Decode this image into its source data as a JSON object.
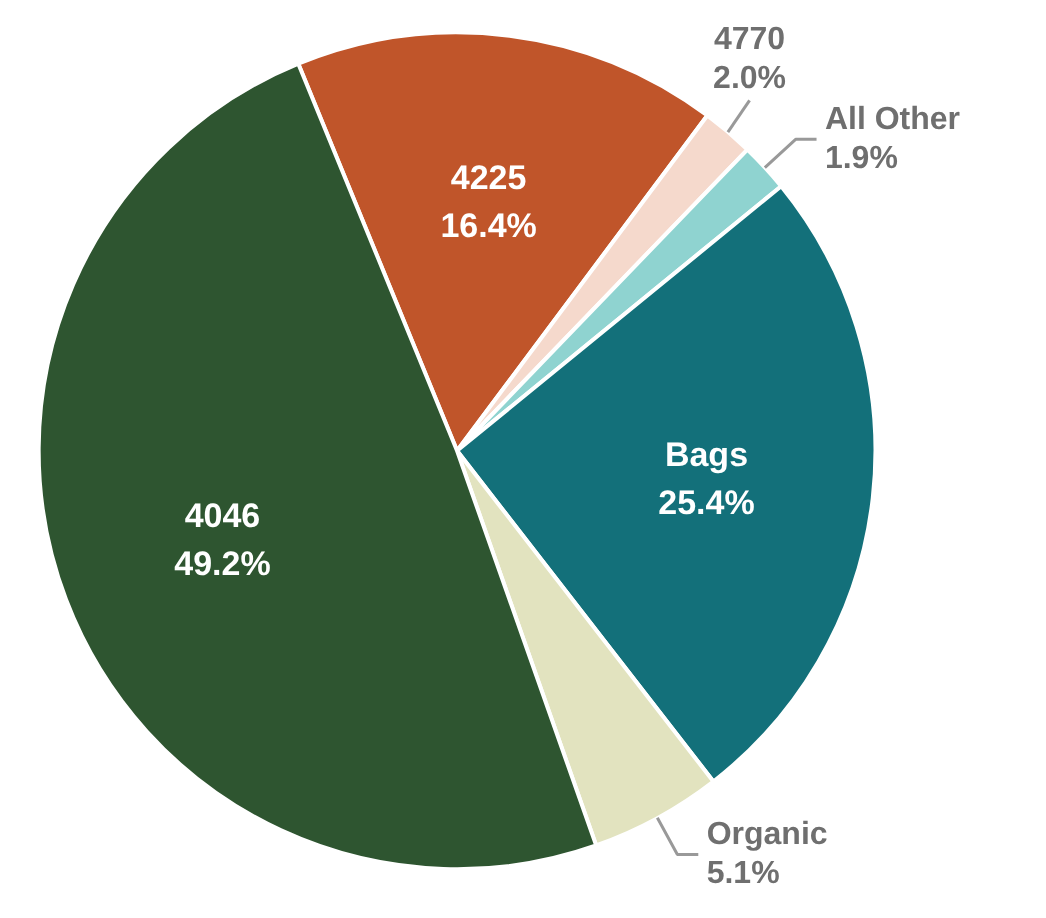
{
  "chart_data": {
    "type": "pie",
    "categories": [
      "4225",
      "4770",
      "All Other",
      "Bags",
      "Organic",
      "4046"
    ],
    "values": [
      16.4,
      2.0,
      1.9,
      25.4,
      5.1,
      49.2
    ],
    "colors": [
      "#c0552a",
      "#f5d9cc",
      "#8fd3d0",
      "#13707a",
      "#e2e3bf",
      "#2e5530"
    ],
    "value_labels": [
      "16.4%",
      "2.0%",
      "1.9%",
      "25.4%",
      "5.1%",
      "49.2%"
    ]
  }
}
